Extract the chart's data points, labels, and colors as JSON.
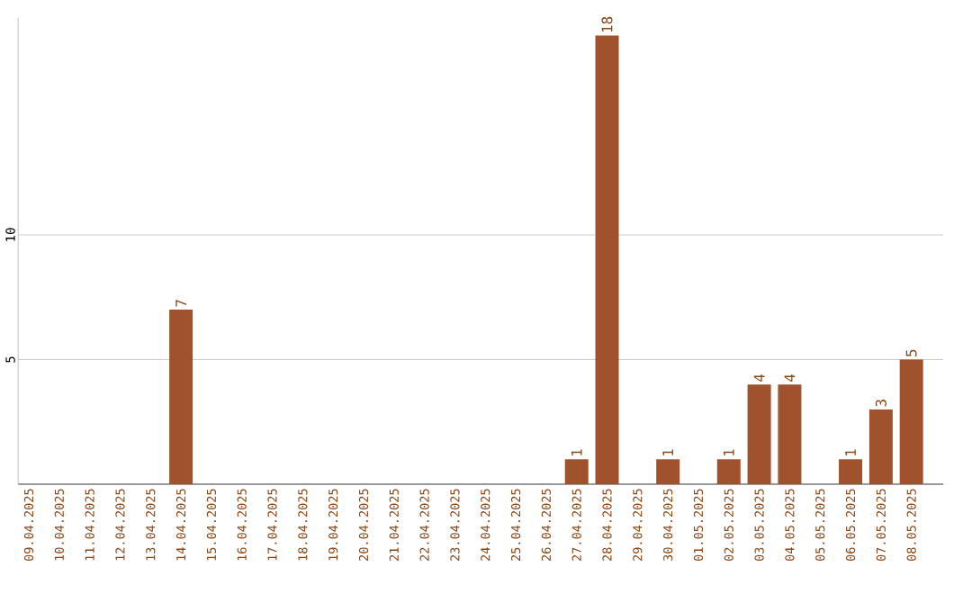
{
  "chart_data": {
    "type": "bar",
    "categories": [
      "09.04.2025",
      "10.04.2025",
      "11.04.2025",
      "12.04.2025",
      "13.04.2025",
      "14.04.2025",
      "15.04.2025",
      "16.04.2025",
      "17.04.2025",
      "18.04.2025",
      "19.04.2025",
      "20.04.2025",
      "21.04.2025",
      "22.04.2025",
      "23.04.2025",
      "24.04.2025",
      "25.04.2025",
      "26.04.2025",
      "27.04.2025",
      "28.04.2025",
      "29.04.2025",
      "30.04.2025",
      "01.05.2025",
      "02.05.2025",
      "03.05.2025",
      "04.05.2025",
      "05.05.2025",
      "06.05.2025",
      "07.05.2025",
      "08.05.2025"
    ],
    "values": [
      0,
      0,
      0,
      0,
      0,
      7,
      0,
      0,
      0,
      0,
      0,
      0,
      0,
      0,
      0,
      0,
      0,
      0,
      1,
      18,
      0,
      1,
      0,
      1,
      4,
      4,
      0,
      1,
      3,
      5
    ],
    "value_labels": [
      null,
      null,
      null,
      null,
      null,
      "7",
      null,
      null,
      null,
      null,
      null,
      null,
      null,
      null,
      null,
      null,
      null,
      null,
      "1",
      "18",
      null,
      "1",
      null,
      "1",
      "4",
      "4",
      null,
      "1",
      "3",
      "5"
    ],
    "color": "#a0522d",
    "ylim": [
      0,
      18.7
    ],
    "yticks": [
      {
        "value": 5,
        "label": "5"
      },
      {
        "value": 10,
        "label": "10"
      }
    ],
    "grid": "y"
  }
}
